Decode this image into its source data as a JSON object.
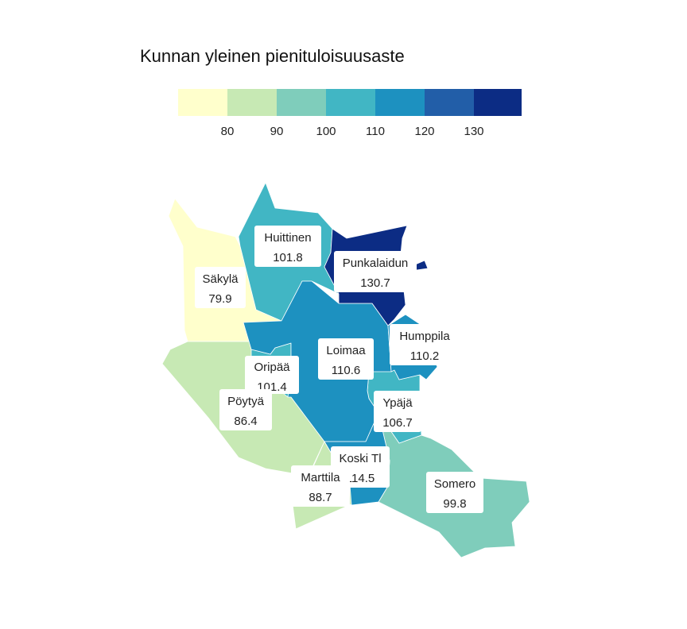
{
  "title": "Kunnan yleinen pienituloisuusaste",
  "legend": {
    "ticks": [
      "80",
      "90",
      "100",
      "110",
      "120",
      "130"
    ],
    "colors": [
      "#ffffcc",
      "#c7e9b4",
      "#7fcdbb",
      "#41b6c4",
      "#1d91c0",
      "#225ea8",
      "#0c2c84"
    ]
  },
  "municipalities": [
    {
      "id": "sakyla",
      "name": "Säkylä",
      "value": "79.9",
      "color": "#ffffcc"
    },
    {
      "id": "poytya",
      "name": "Pöytyä",
      "value": "86.4",
      "color": "#c7e9b4"
    },
    {
      "id": "marttila",
      "name": "Marttila",
      "value": "88.7",
      "color": "#c7e9b4"
    },
    {
      "id": "somero",
      "name": "Somero",
      "value": "99.8",
      "color": "#7fcdbb"
    },
    {
      "id": "huittinen",
      "name": "Huittinen",
      "value": "101.8",
      "color": "#41b6c4"
    },
    {
      "id": "oripaa",
      "name": "Oripää",
      "value": "101.4",
      "color": "#41b6c4"
    },
    {
      "id": "ypaja",
      "name": "Ypäjä",
      "value": "106.7",
      "color": "#41b6c4"
    },
    {
      "id": "loimaa",
      "name": "Loimaa",
      "value": "110.6",
      "color": "#1d91c0"
    },
    {
      "id": "humppila",
      "name": "Humppila",
      "value": "110.2",
      "color": "#1d91c0"
    },
    {
      "id": "koskitl",
      "name": "Koski Tl",
      "value": "114.5",
      "color": "#1d91c0"
    },
    {
      "id": "punkalaidun",
      "name": "Punkalaidun",
      "value": "130.7",
      "color": "#0c2c84"
    }
  ]
}
